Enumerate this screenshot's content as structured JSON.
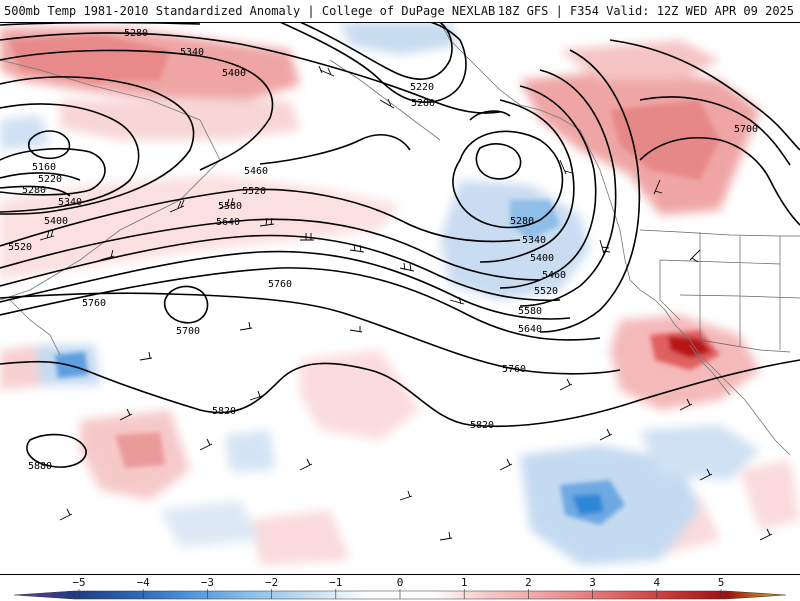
{
  "header": {
    "left_title": "500mb Temp 1981-2010 Standardized Anomaly | College of DuPage NEXLAB",
    "right_title": "18Z GFS | F354 Valid: 12Z WED APR 09 2025"
  },
  "contour_labels": [
    {
      "id": "c5280a",
      "text": "5280"
    },
    {
      "id": "c5340a",
      "text": "5340"
    },
    {
      "id": "c5400a",
      "text": "5400"
    },
    {
      "id": "c5220a",
      "text": "5220"
    },
    {
      "id": "c5280b",
      "text": "5280"
    },
    {
      "id": "c5160",
      "text": "5160"
    },
    {
      "id": "c5220b",
      "text": "5220"
    },
    {
      "id": "c5280c",
      "text": "5280"
    },
    {
      "id": "c5340b",
      "text": "5340"
    },
    {
      "id": "c5400b",
      "text": "5400"
    },
    {
      "id": "c5520a",
      "text": "5520"
    },
    {
      "id": "c5460a",
      "text": "5460"
    },
    {
      "id": "c5520b",
      "text": "5520"
    },
    {
      "id": "c5580a",
      "text": "5580"
    },
    {
      "id": "c5640a",
      "text": "5640"
    },
    {
      "id": "c5760a",
      "text": "5760"
    },
    {
      "id": "c5700a",
      "text": "5700"
    },
    {
      "id": "c5760b",
      "text": "5760"
    },
    {
      "id": "c5280d",
      "text": "5280"
    },
    {
      "id": "c5340c",
      "text": "5340"
    },
    {
      "id": "c5400c",
      "text": "5400"
    },
    {
      "id": "c5460b",
      "text": "5460"
    },
    {
      "id": "c5520c",
      "text": "5520"
    },
    {
      "id": "c5580b",
      "text": "5580"
    },
    {
      "id": "c5640b",
      "text": "5640"
    },
    {
      "id": "c5700b",
      "text": "5700"
    },
    {
      "id": "c5760c",
      "text": "5760"
    },
    {
      "id": "c5820a",
      "text": "5820"
    },
    {
      "id": "c5820b",
      "text": "5820"
    },
    {
      "id": "c5880",
      "text": "5880"
    }
  ],
  "colorbar": {
    "ticks": [
      "−5",
      "−4",
      "−3",
      "−2",
      "−1",
      "0",
      "1",
      "2",
      "3",
      "4",
      "5"
    ],
    "colors": [
      "#6a3fa0",
      "#1f3b80",
      "#2c64b0",
      "#4f97dc",
      "#8ec0ea",
      "#c6def2",
      "#ffffff",
      "#ffffff",
      "#f5c7c7",
      "#ee9e9e",
      "#e06d6d",
      "#c93a3a",
      "#9a1010",
      "#f3b81b"
    ]
  }
}
